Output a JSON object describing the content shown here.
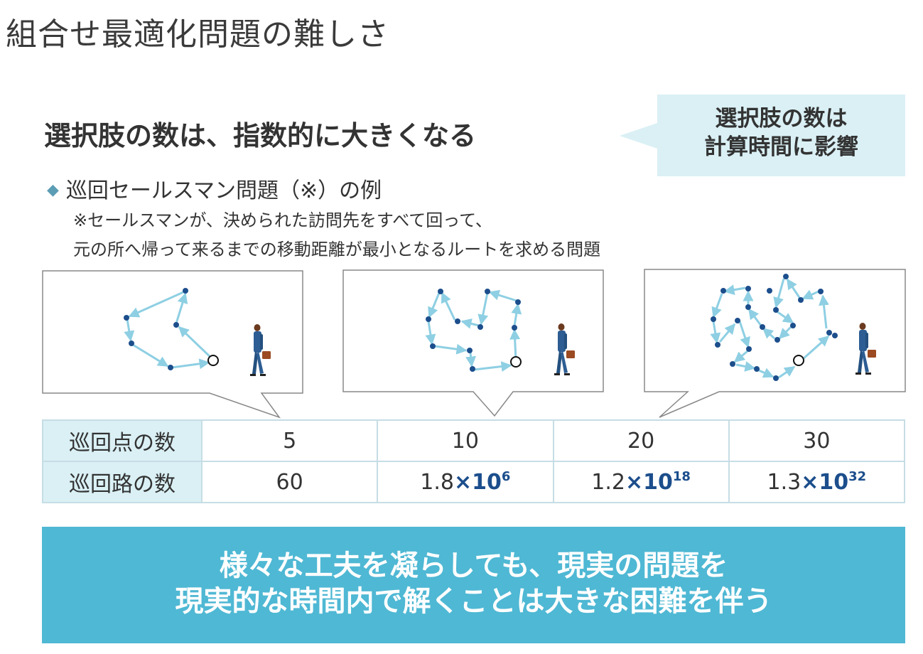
{
  "title": "組合せ最適化問題の難しさ",
  "headline": "選択肢の数は、指数的に大きくなる",
  "callout": {
    "line1": "選択肢の数は",
    "line2": "計算時間に影響"
  },
  "bullet": "巡回セールスマン問題（※）の例",
  "note": {
    "line1": "※セールスマンが、決められた訪問先をすべて回って、",
    "line2": "元の所へ帰って来るまでの移動距離が最小となるルートを求める問題"
  },
  "table": {
    "row1_header": "巡回点の数",
    "row2_header": "巡回路の数",
    "points": [
      "5",
      "10",
      "20",
      "30"
    ],
    "routes": [
      {
        "plain": "60",
        "mult": "",
        "base": "",
        "exp": ""
      },
      {
        "plain": "1.8",
        "mult": "×",
        "base": "10",
        "exp": "6"
      },
      {
        "plain": "1.2",
        "mult": "×",
        "base": "10",
        "exp": "18"
      },
      {
        "plain": "1.3",
        "mult": "×",
        "base": "10",
        "exp": "32"
      }
    ]
  },
  "banner": {
    "line1": "様々な工夫を凝らしても、現実の問題を",
    "line2": "現実的な時間内で解くことは大きな困難を伴う"
  },
  "colors": {
    "accent_light": "#daf0f5",
    "accent": "#4fb8d4",
    "node": "#1c4e8c",
    "edge": "#8ecfe3",
    "exponent_text": "#1c4e8c"
  },
  "icons": [
    "diamond-bullet-icon",
    "salesman-icon",
    "start-node-icon",
    "route-arrow-icon"
  ]
}
